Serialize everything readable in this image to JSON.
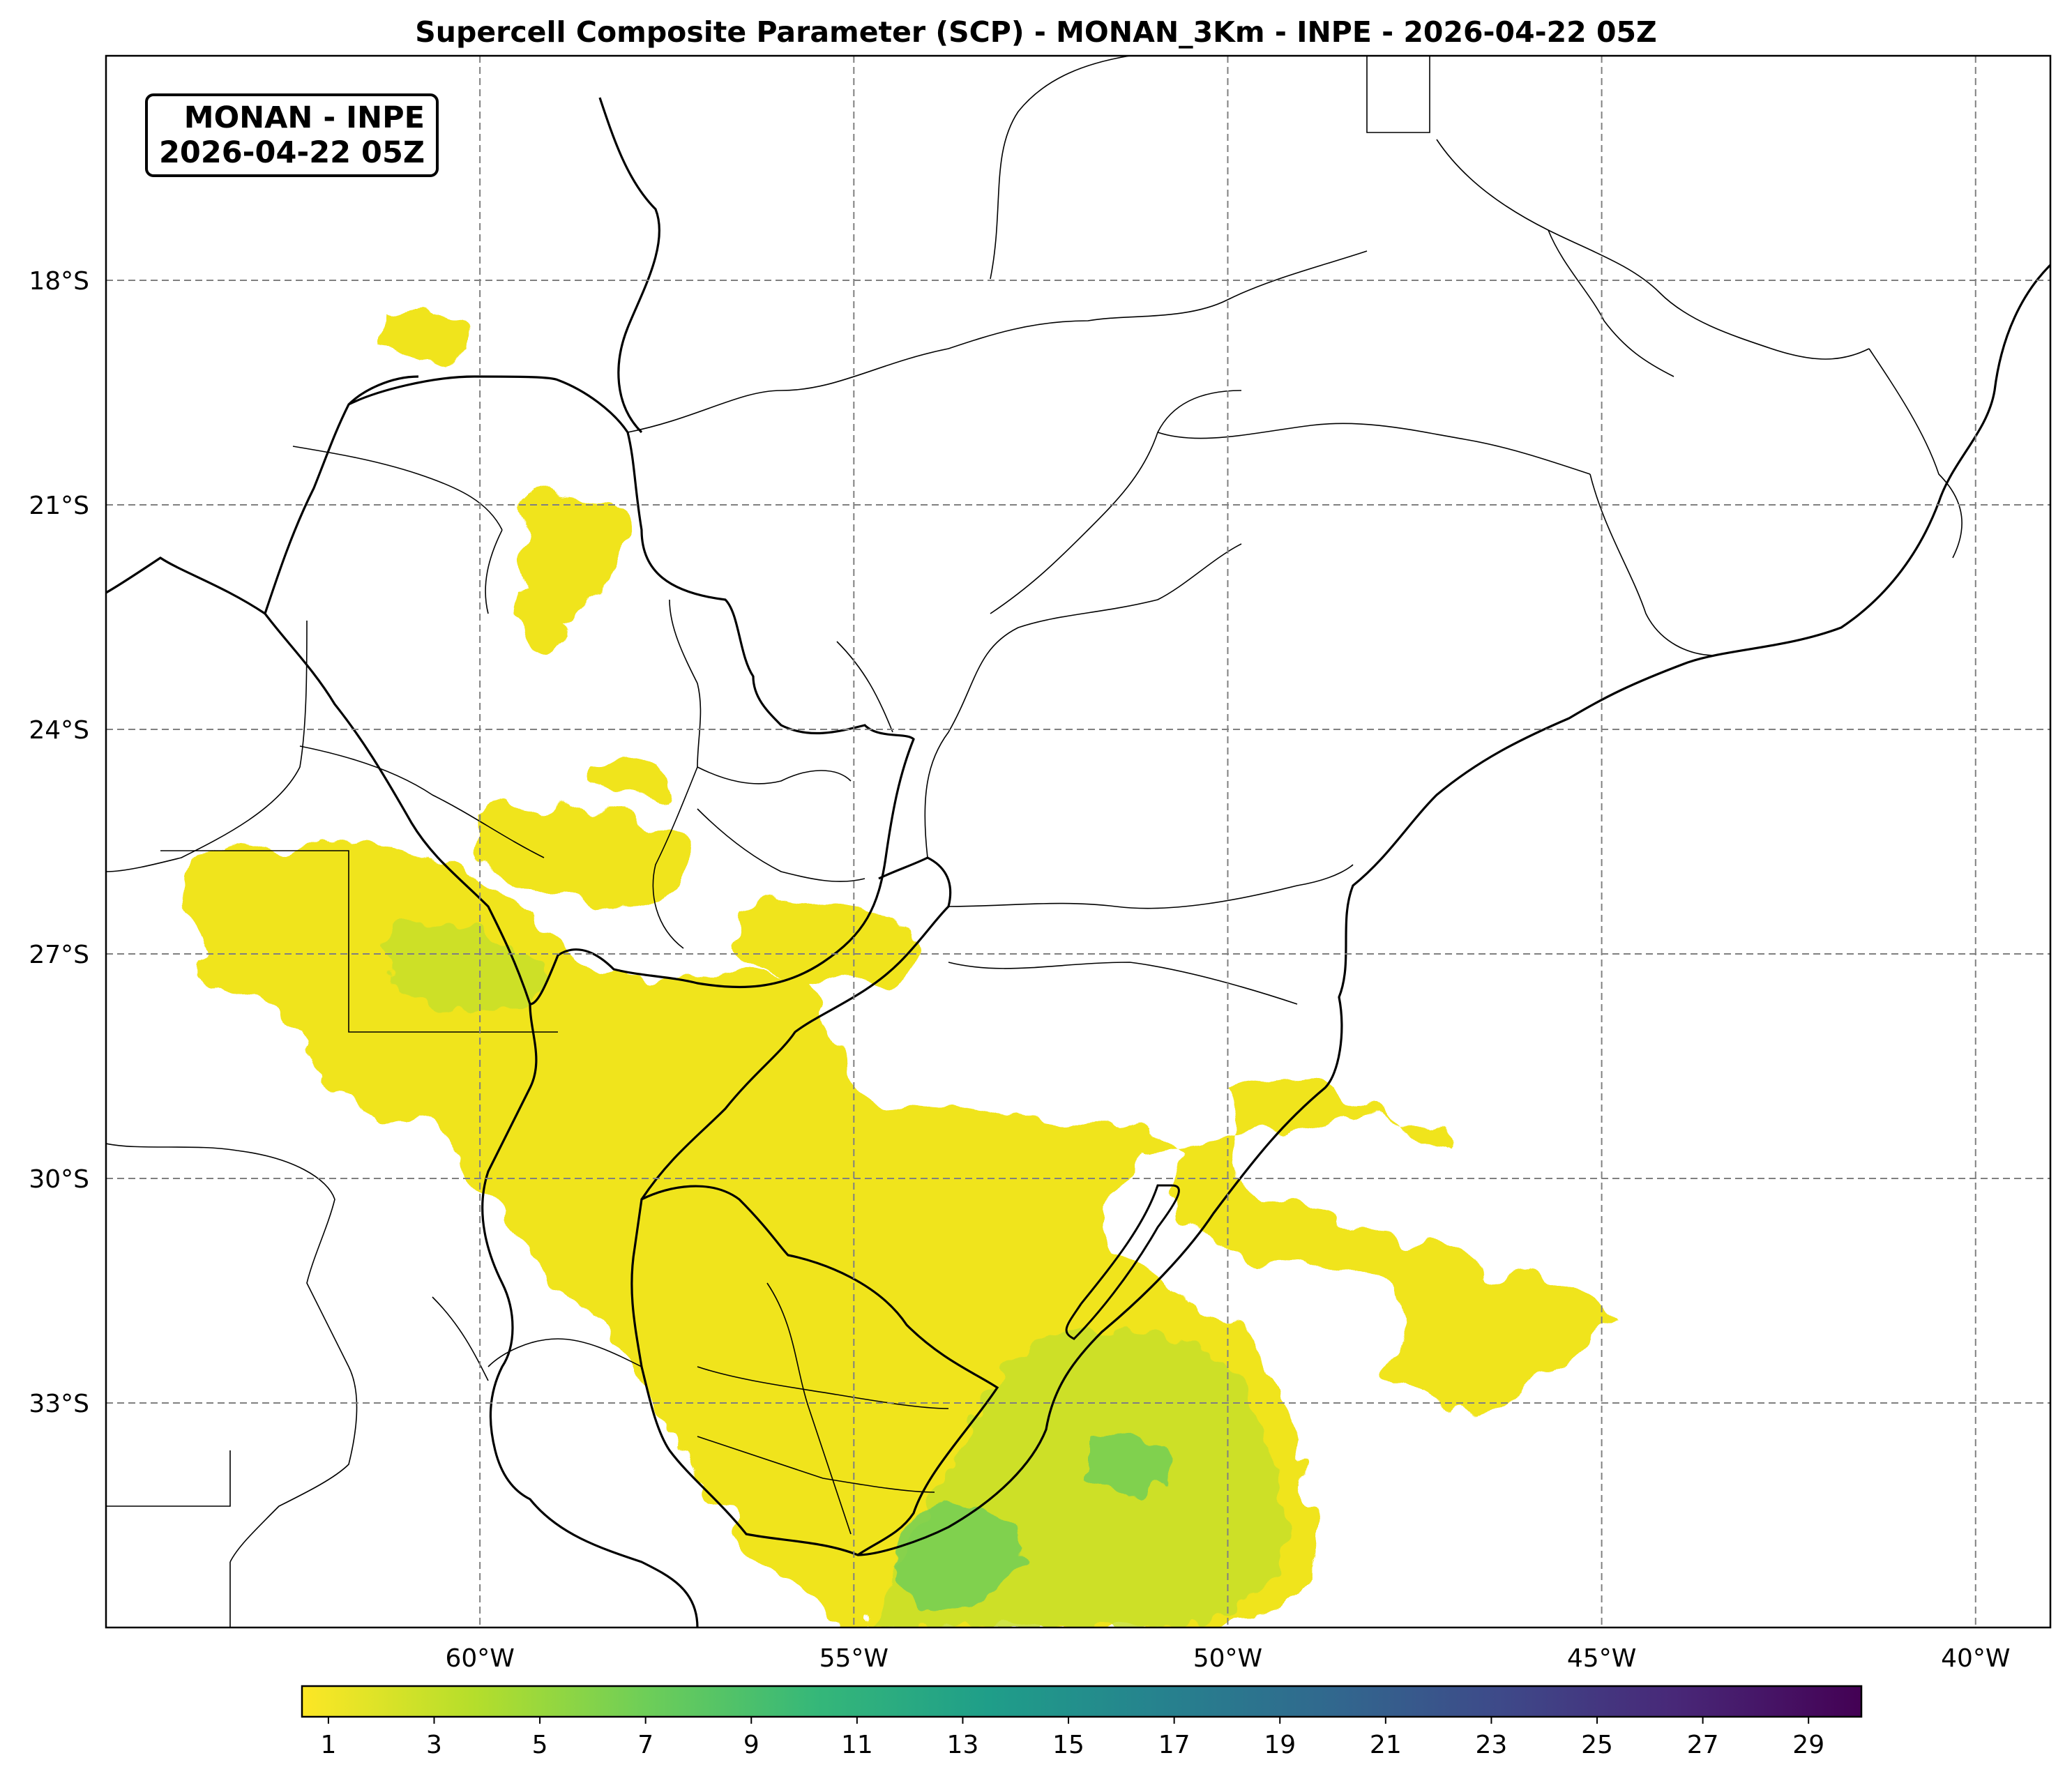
{
  "title": "Supercell Composite Parameter (SCP) - MONAN_3Km - INPE - 2026-04-22 05Z",
  "badge": {
    "line1": "MONAN - INPE",
    "line2": "2026-04-22 05Z"
  },
  "map": {
    "lon_range": [
      -65,
      -39
    ],
    "lat_range": [
      -36,
      -15
    ],
    "lon_ticks": [
      "60°W",
      "55°W",
      "50°W",
      "45°W",
      "40°W"
    ],
    "lon_values": [
      -60,
      -55,
      -50,
      -45,
      -40
    ],
    "lat_ticks": [
      "18°S",
      "21°S",
      "24°S",
      "27°S",
      "30°S",
      "33°S"
    ],
    "lat_values": [
      -18,
      -21,
      -24,
      -27,
      -30,
      -33
    ],
    "gridlines": true
  },
  "colorbar": {
    "colormap": "viridis_r",
    "min": 0.5,
    "max": 30,
    "ticks": [
      "1",
      "3",
      "5",
      "7",
      "9",
      "11",
      "13",
      "15",
      "17",
      "19",
      "21",
      "23",
      "25",
      "27",
      "29"
    ],
    "tick_values": [
      1,
      3,
      5,
      7,
      9,
      11,
      13,
      15,
      17,
      19,
      21,
      23,
      25,
      27,
      29
    ],
    "colors": [
      "#fde725",
      "#b5de2b",
      "#6ece58",
      "#35b779",
      "#1f9e89",
      "#26828e",
      "#31688e",
      "#3e4989",
      "#482878",
      "#440154"
    ]
  },
  "colors": {
    "scp_low": "#f0e41e",
    "scp_mid": "#c8e02a",
    "scp_high": "#5cc863",
    "border": "#000000",
    "grid": "#808080"
  }
}
